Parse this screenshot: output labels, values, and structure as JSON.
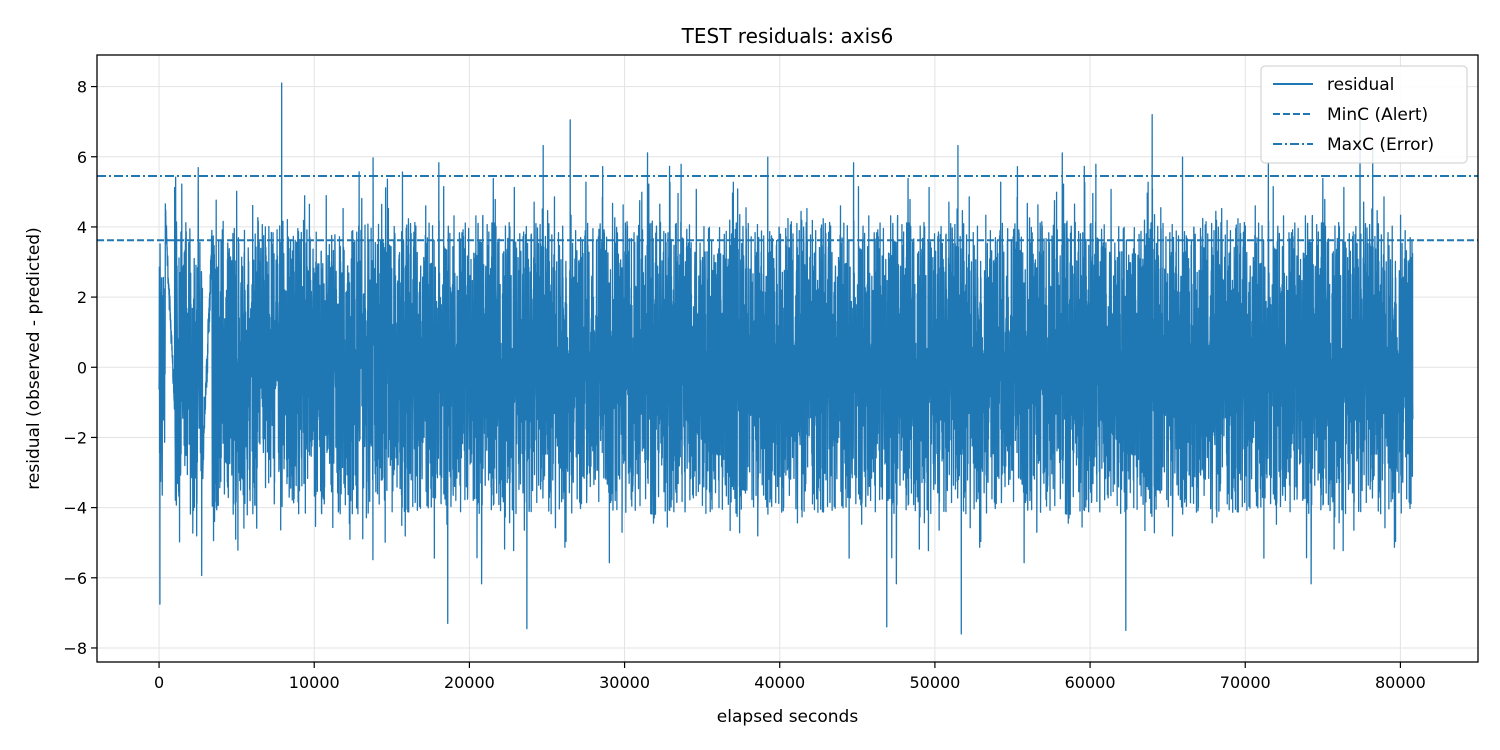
{
  "chart_data": {
    "type": "line",
    "title": "TEST residuals: axis6",
    "xlabel": "elapsed seconds",
    "ylabel": "residual (observed - predicted)",
    "xlim": [
      -4000,
      85000
    ],
    "ylim": [
      -8.4,
      8.9
    ],
    "xticks": [
      0,
      10000,
      20000,
      30000,
      40000,
      50000,
      60000,
      70000,
      80000
    ],
    "yticks": [
      -8,
      -6,
      -4,
      -2,
      0,
      2,
      4,
      6,
      8
    ],
    "xtick_labels": [
      "0",
      "10000",
      "20000",
      "30000",
      "40000",
      "50000",
      "60000",
      "70000",
      "80000"
    ],
    "ytick_labels": [
      "−8",
      "−6",
      "−4",
      "−2",
      "0",
      "2",
      "4",
      "6",
      "8"
    ],
    "grid": true,
    "legend_position": "top-right",
    "color": "#1f77b4",
    "series": [
      {
        "name": "residual",
        "style": "solid",
        "x_range": [
          0,
          80800
        ],
        "typical_band": [
          -4.5,
          4.5
        ],
        "notable_points": [
          {
            "x": 50,
            "y": -6.75
          },
          {
            "x": 7900,
            "y": 8.1
          },
          {
            "x": 18600,
            "y": -7.3
          },
          {
            "x": 23700,
            "y": -7.45
          },
          {
            "x": 26500,
            "y": 7.05
          },
          {
            "x": 46900,
            "y": -7.4
          },
          {
            "x": 51700,
            "y": -7.6
          },
          {
            "x": 62300,
            "y": -7.5
          },
          {
            "x": 64000,
            "y": 7.2
          },
          {
            "x": 77400,
            "y": 7.1
          }
        ]
      },
      {
        "name": "MinC (Alert)",
        "style": "dashed",
        "y": 3.62
      },
      {
        "name": "MaxC (Error)",
        "style": "dashdot",
        "y": 5.45
      }
    ]
  }
}
